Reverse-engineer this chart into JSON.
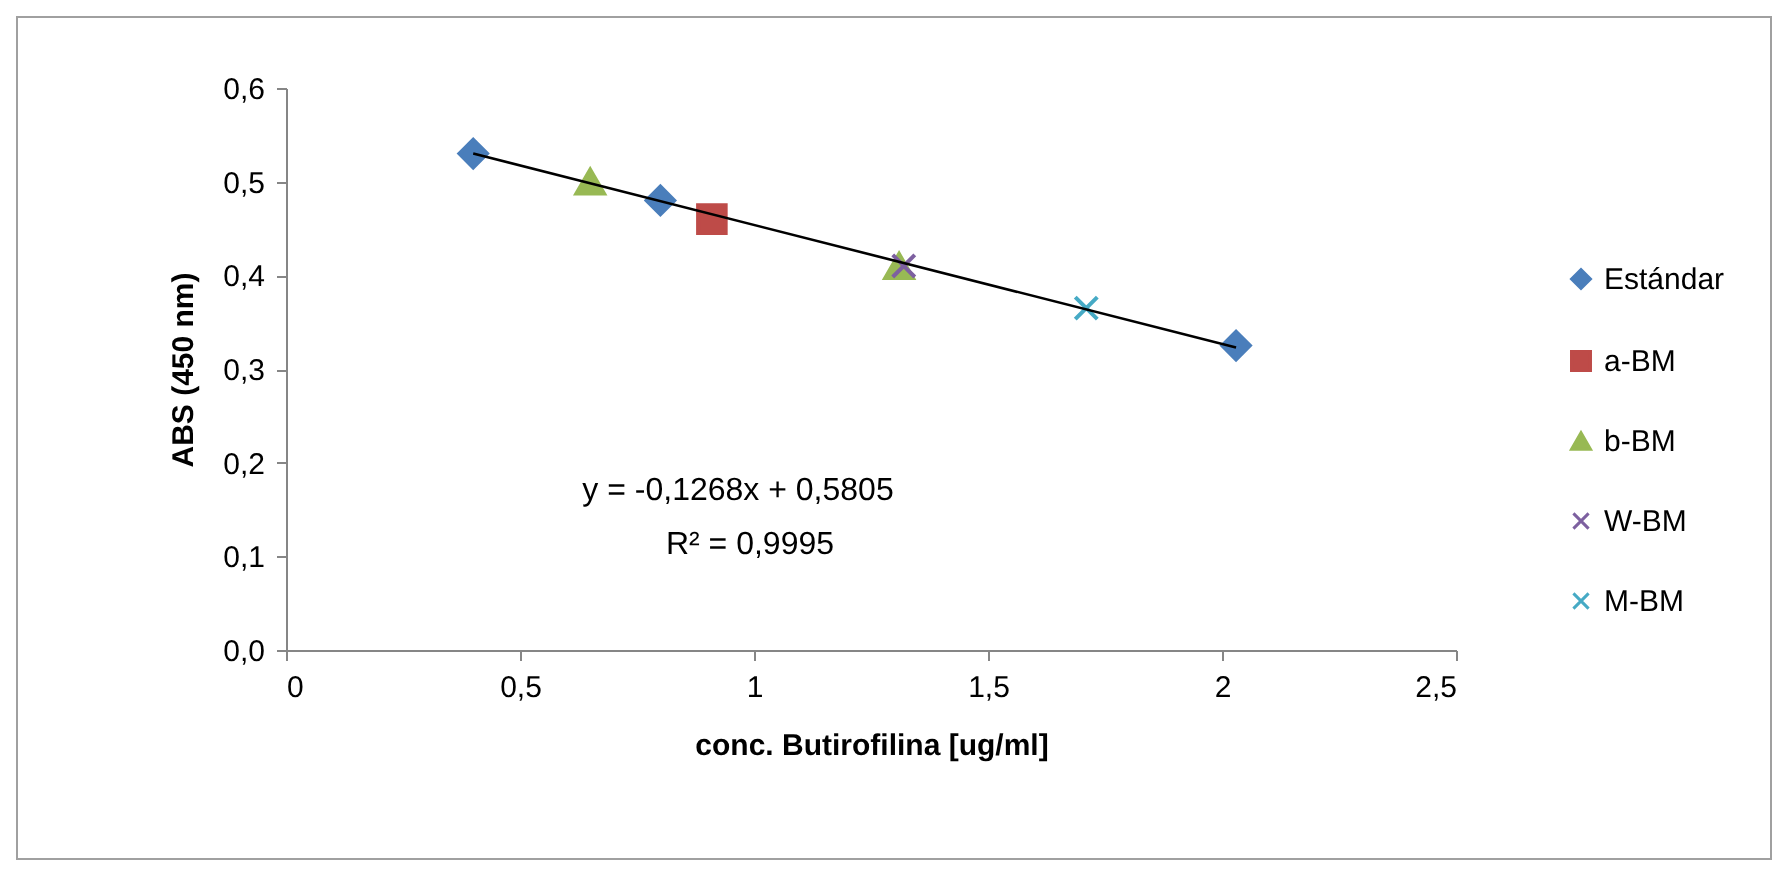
{
  "chart_data": {
    "type": "scatter",
    "xlabel": "conc. Butirofilina [ug/ml]",
    "ylabel": "ABS (450 nm)",
    "xlim": [
      0,
      2.5
    ],
    "xticks": [
      0,
      {
        "value": 0.5,
        "label": "0,5"
      },
      1,
      {
        "value": 1.5,
        "label": "1,5"
      },
      2,
      {
        "value": 2.5,
        "label": "2,5"
      }
    ],
    "ylim": [
      0,
      0.6
    ],
    "yticks": [
      {
        "value": 0,
        "label": "0,0"
      },
      {
        "value": 0.1,
        "label": "0,1"
      },
      {
        "value": 0.2,
        "label": "0,2"
      },
      {
        "value": 0.3,
        "label": "0,3"
      },
      {
        "value": 0.4,
        "label": "0,4"
      },
      {
        "value": 0.5,
        "label": "0,5"
      },
      {
        "value": 0.6,
        "label": "0,6"
      }
    ],
    "grid": false,
    "legend": "right",
    "annotations": [
      "y = -0,1268x + 0,5805",
      "R² = 0,9995"
    ],
    "series": [
      {
        "name": "Estándar",
        "color": "#4a7ebb",
        "marker": "diamond",
        "x": [
          0.4,
          0.8,
          2.03
        ],
        "values": [
          0.53,
          0.48,
          0.325
        ]
      },
      {
        "name": "a-BM",
        "color": "#be4b48",
        "marker": "square",
        "x": [
          0.91
        ],
        "values": [
          0.46
        ]
      },
      {
        "name": "b-BM",
        "color": "#98b954",
        "marker": "triangle",
        "x": [
          0.65,
          1.31
        ],
        "values": [
          0.5,
          0.41
        ]
      },
      {
        "name": "W-BM",
        "color": "#7d60a0",
        "marker": "cross",
        "x": [
          1.32
        ],
        "values": [
          0.41
        ]
      },
      {
        "name": "M-BM",
        "color": "#46aac5",
        "marker": "cross",
        "x": [
          1.71
        ],
        "values": [
          0.365
        ]
      },
      {
        "type": "line",
        "color": "#000000",
        "x": [
          0.4,
          2.03
        ],
        "values": [
          0.53,
          0.323
        ]
      }
    ]
  }
}
